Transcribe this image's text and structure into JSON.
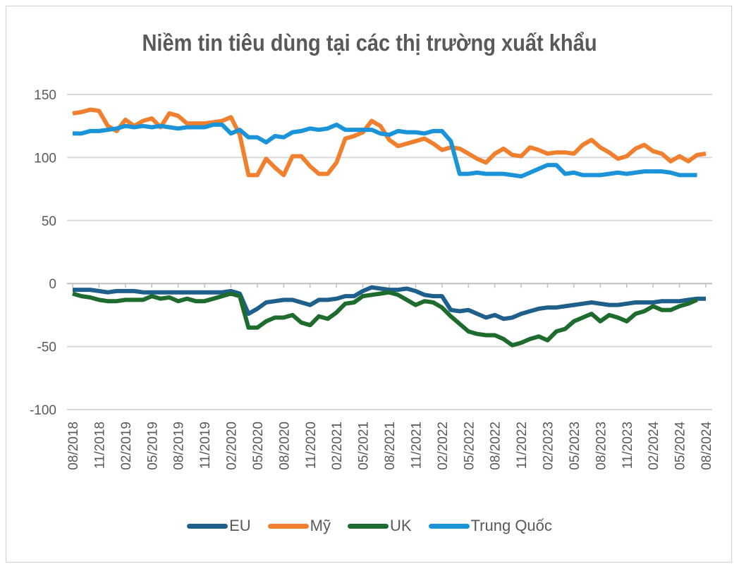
{
  "chart_data": {
    "type": "line",
    "title": "Niềm tin tiêu dùng tại các thị trường xuất khẩu",
    "xlabel": "",
    "ylabel": "",
    "ylim": [
      -100,
      150
    ],
    "yticks": [
      "150",
      "100",
      "50",
      "0",
      "-50",
      "-100"
    ],
    "ytick_values": [
      150,
      100,
      50,
      0,
      -50,
      -100
    ],
    "x_start": "08/2018",
    "x_end": "08/2024",
    "xticks": [
      "08/2018",
      "11/2018",
      "02/2019",
      "05/2019",
      "08/2019",
      "11/2019",
      "02/2020",
      "05/2020",
      "08/2020",
      "11/2020",
      "02/2021",
      "05/2021",
      "08/2021",
      "11/2021",
      "02/2022",
      "05/2022",
      "08/2022",
      "11/2022",
      "02/2023",
      "05/2023",
      "08/2023",
      "11/2023",
      "02/2024",
      "05/2024",
      "08/2024"
    ],
    "grid": true,
    "legend_position": "bottom",
    "series": [
      {
        "name": "EU",
        "color": "#1f5f8b",
        "values": [
          -5,
          -5,
          -5,
          -6,
          -7,
          -6,
          -6,
          -6,
          -7,
          -7,
          -7,
          -7,
          -7,
          -7,
          -7,
          -7,
          -7,
          -7,
          -6,
          -8,
          -24,
          -20,
          -15,
          -14,
          -13,
          -13,
          -15,
          -17,
          -13,
          -13,
          -12,
          -10,
          -10,
          -6,
          -3,
          -4,
          -5,
          -5,
          -4,
          -6,
          -9,
          -10,
          -10,
          -21,
          -22,
          -21,
          -24,
          -27,
          -25,
          -28,
          -27,
          -24,
          -22,
          -20,
          -19,
          -19,
          -18,
          -17,
          -16,
          -15,
          -16,
          -17,
          -17,
          -16,
          -15,
          -15,
          -15,
          -14,
          -14,
          -14,
          -13,
          -12,
          -12
        ]
      },
      {
        "name": "Mỹ",
        "color": "#f07f2e",
        "values": [
          135,
          136,
          138,
          137,
          125,
          121,
          130,
          125,
          129,
          131,
          124,
          135,
          133,
          127,
          127,
          127,
          128,
          129,
          132,
          118,
          86,
          86,
          99,
          92,
          86,
          101,
          101,
          93,
          87,
          87,
          96,
          115,
          117,
          120,
          129,
          125,
          114,
          109,
          111,
          113,
          115,
          111,
          106,
          108,
          107,
          103,
          99,
          96,
          103,
          107,
          102,
          101,
          108,
          106,
          103,
          104,
          104,
          103,
          110,
          114,
          108,
          104,
          99,
          101,
          107,
          110,
          105,
          103,
          97,
          101,
          97,
          102,
          103
        ]
      },
      {
        "name": "UK",
        "color": "#1e6b2e",
        "values": [
          -8,
          -10,
          -11,
          -13,
          -14,
          -14,
          -13,
          -13,
          -13,
          -10,
          -12,
          -11,
          -14,
          -12,
          -14,
          -14,
          -12,
          -10,
          -8,
          -10,
          -35,
          -35,
          -30,
          -27,
          -27,
          -25,
          -31,
          -33,
          -26,
          -28,
          -23,
          -16,
          -15,
          -10,
          -9,
          -8,
          -7,
          -9,
          -13,
          -17,
          -14,
          -15,
          -19,
          -26,
          -32,
          -38,
          -40,
          -41,
          -41,
          -44,
          -49,
          -47,
          -44,
          -42,
          -45,
          -38,
          -36,
          -30,
          -27,
          -24,
          -30,
          -25,
          -27,
          -30,
          -24,
          -22,
          -18,
          -21,
          -21,
          -18,
          -16,
          -13
        ]
      },
      {
        "name": "Trung Quốc",
        "color": "#1b93d9",
        "values": [
          119,
          119,
          121,
          121,
          122,
          123,
          125,
          124,
          125,
          124,
          125,
          124,
          123,
          124,
          124,
          124,
          126,
          126,
          119,
          122,
          116,
          116,
          112,
          117,
          116,
          120,
          121,
          123,
          122,
          123,
          126,
          122,
          122,
          122,
          122,
          119,
          118,
          121,
          120,
          120,
          119,
          121,
          121,
          113,
          87,
          87,
          88,
          87,
          87,
          87,
          86,
          85,
          88,
          91,
          94,
          94,
          87,
          88,
          86,
          86,
          86,
          87,
          88,
          87,
          88,
          89,
          89,
          89,
          88,
          86,
          86,
          86
        ]
      }
    ]
  }
}
